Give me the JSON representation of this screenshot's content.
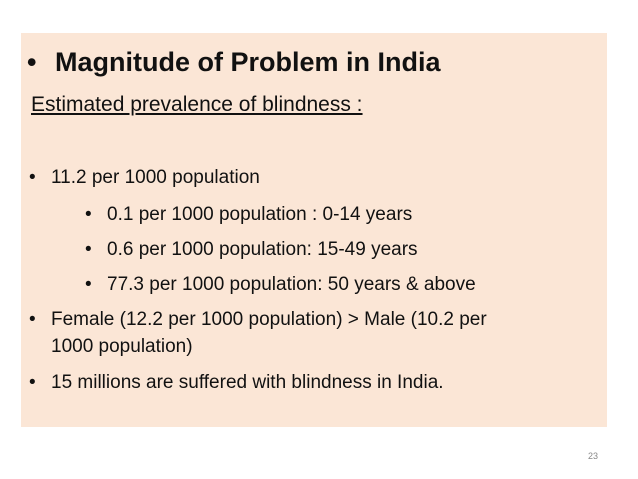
{
  "slide": {
    "title_bullet": "•",
    "title": "Magnitude of Problem in India",
    "subtitle": "Estimated prevalence of blindness :",
    "bullet": "•",
    "items": [
      {
        "text": "11.2 per 1000 population"
      },
      {
        "text": "0.1 per 1000 population : 0-14 years"
      },
      {
        "text": "0.6 per 1000 population: 15-49 years"
      },
      {
        "text": "77.3 per 1000 population: 50 years & above"
      },
      {
        "text": "Female (12.2 per 1000 population) > Male (10.2 per",
        "continuation": "1000 population)"
      },
      {
        "text": "15 millions are suffered with blindness in India."
      }
    ],
    "page_number": "23",
    "background_color": "#fbe6d6"
  }
}
